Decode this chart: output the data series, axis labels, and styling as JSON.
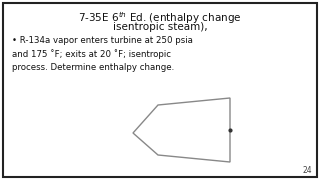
{
  "title_line1": "7-35E 6$^{th}$ Ed. (enthalpy change",
  "title_line2": "isentropic steam),",
  "bullet_text": "R-134a vapor enters turbine at 250 psia\nand 175 ˚F; exits at 20 ˚F; isentropic\nprocess. Determine enthalpy change.",
  "bg_color": "#ffffff",
  "border_color": "#1a1a1a",
  "text_color": "#111111",
  "page_number": "24",
  "shape_edge_color": "#888888",
  "shape_linewidth": 1.0,
  "title_fontsize": 7.5,
  "bullet_fontsize": 6.2,
  "page_num_fontsize": 5.5
}
